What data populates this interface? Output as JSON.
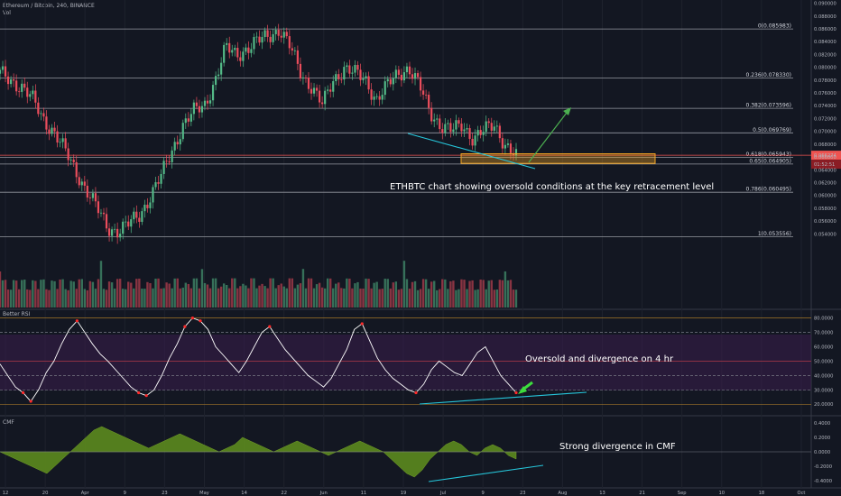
{
  "header": {
    "symbol": "Ethereum / Bitcoin, 240, BINANCE",
    "vol_label": "Vol"
  },
  "colors": {
    "background": "#131722",
    "up": "#53b987",
    "down": "#eb4d5c",
    "fib_line": "#9598a1",
    "current_line": "#ef5350",
    "box": "#f5a623",
    "trend": "#26c6da",
    "arrow": "#4caf50",
    "rsi_band": "#3b1e4d",
    "cmf_fill": "#5c8a1e"
  },
  "annotations": {
    "price_note": "ETHBTC chart showing oversold conditions at the key retracement level",
    "rsi_note": "Oversold and divergence on 4 hr",
    "cmf_note": "Strong divergence in CMF"
  },
  "panes": {
    "rsi_title": "Better RSI",
    "cmf_title": "CMF"
  },
  "chart_data": [
    {
      "type": "candlestick",
      "pane": "price",
      "ylim": [
        0.0525,
        0.0905
      ],
      "price_ticks": [
        "0.090000",
        "0.088000",
        "0.086000",
        "0.084000",
        "0.082000",
        "0.080000",
        "0.078000",
        "0.076000",
        "0.074000",
        "0.072000",
        "0.070000",
        "0.068000",
        "0.066000",
        "0.064000",
        "0.062000",
        "0.060000",
        "0.058000",
        "0.056000",
        "0.054000",
        "0.052000"
      ],
      "x_ticks": [
        "12",
        "20",
        "Apr",
        "9",
        "23",
        "May",
        "14",
        "22",
        "Jun",
        "11",
        "19",
        "Jul",
        "9",
        "23",
        "Aug",
        "13",
        "21",
        "Sep",
        "10",
        "18",
        "Oct"
      ],
      "fib_levels": [
        {
          "label": "0(0.085983)",
          "value": 0.085983
        },
        {
          "label": "0.236(0.078330)",
          "value": 0.07833
        },
        {
          "label": "0.382(0.073596)",
          "value": 0.073596
        },
        {
          "label": "0.5(0.069769)",
          "value": 0.069769
        },
        {
          "label": "0.618(0.065943)",
          "value": 0.065943
        },
        {
          "label": "0.65(0.064905)",
          "value": 0.064905
        },
        {
          "label": "0.786(0.060495)",
          "value": 0.060495
        },
        {
          "label": "1(0.053556)",
          "value": 0.053556
        }
      ],
      "current_price": {
        "value": 0.066274,
        "label": "0.066274",
        "countdown": "01:52:51"
      },
      "price_path": [
        [
          0,
          0.079
        ],
        [
          4,
          0.077
        ],
        [
          6,
          0.075
        ],
        [
          8,
          0.072
        ],
        [
          10,
          0.07
        ],
        [
          12,
          0.067
        ],
        [
          14,
          0.064
        ],
        [
          16,
          0.061
        ],
        [
          18,
          0.058
        ],
        [
          20,
          0.055
        ],
        [
          22,
          0.0545
        ],
        [
          24,
          0.0555
        ],
        [
          26,
          0.057
        ],
        [
          28,
          0.06
        ],
        [
          30,
          0.063
        ],
        [
          32,
          0.067
        ],
        [
          34,
          0.071
        ],
        [
          36,
          0.073
        ],
        [
          38,
          0.074
        ],
        [
          40,
          0.078
        ],
        [
          42,
          0.083
        ],
        [
          44,
          0.082
        ],
        [
          46,
          0.083
        ],
        [
          48,
          0.084
        ],
        [
          50,
          0.085
        ],
        [
          52,
          0.086
        ],
        [
          54,
          0.083
        ],
        [
          56,
          0.079
        ],
        [
          58,
          0.077
        ],
        [
          60,
          0.074
        ],
        [
          62,
          0.078
        ],
        [
          64,
          0.08
        ],
        [
          66,
          0.079
        ],
        [
          68,
          0.078
        ],
        [
          70,
          0.075
        ],
        [
          72,
          0.077
        ],
        [
          74,
          0.079
        ],
        [
          76,
          0.08
        ],
        [
          78,
          0.077
        ],
        [
          80,
          0.073
        ],
        [
          82,
          0.071
        ],
        [
          84,
          0.07
        ],
        [
          86,
          0.071
        ],
        [
          88,
          0.069
        ],
        [
          90,
          0.07
        ],
        [
          92,
          0.071
        ],
        [
          94,
          0.068
        ],
        [
          96,
          0.066
        ]
      ]
    },
    {
      "type": "line",
      "pane": "Better RSI",
      "ylim": [
        12,
        86
      ],
      "ticks": [
        "80.0000",
        "70.0000",
        "60.0000",
        "50.0000",
        "40.0000",
        "30.0000",
        "20.0000"
      ],
      "levels": [
        70,
        50,
        40,
        30
      ],
      "values": [
        48,
        40,
        32,
        28,
        22,
        30,
        42,
        50,
        62,
        72,
        78,
        70,
        62,
        55,
        50,
        44,
        38,
        32,
        28,
        26,
        30,
        40,
        52,
        62,
        74,
        80,
        78,
        72,
        60,
        54,
        48,
        42,
        50,
        60,
        70,
        74,
        66,
        58,
        52,
        46,
        40,
        36,
        32,
        38,
        48,
        58,
        72,
        76,
        64,
        52,
        44,
        38,
        34,
        30,
        28,
        34,
        44,
        50,
        46,
        42,
        40,
        48,
        56,
        60,
        50,
        40,
        34,
        28
      ]
    },
    {
      "type": "area",
      "pane": "CMF",
      "ylim": [
        -0.5,
        0.5
      ],
      "ticks": [
        "0.4000",
        "0.2000",
        "0.0000",
        "-0.2000",
        "-0.4000"
      ],
      "values": [
        0.0,
        -0.05,
        -0.1,
        -0.15,
        -0.2,
        -0.25,
        -0.3,
        -0.2,
        -0.1,
        0.0,
        0.1,
        0.2,
        0.3,
        0.35,
        0.3,
        0.25,
        0.2,
        0.15,
        0.1,
        0.05,
        0.1,
        0.15,
        0.2,
        0.25,
        0.2,
        0.15,
        0.1,
        0.05,
        0.0,
        0.05,
        0.1,
        0.2,
        0.15,
        0.1,
        0.05,
        0.0,
        0.05,
        0.1,
        0.15,
        0.1,
        0.05,
        0.0,
        -0.05,
        0.0,
        0.05,
        0.1,
        0.15,
        0.1,
        0.05,
        0.0,
        -0.1,
        -0.2,
        -0.3,
        -0.35,
        -0.25,
        -0.1,
        0.0,
        0.1,
        0.15,
        0.1,
        0.0,
        -0.05,
        0.05,
        0.1,
        0.05,
        -0.05,
        -0.1
      ]
    }
  ]
}
